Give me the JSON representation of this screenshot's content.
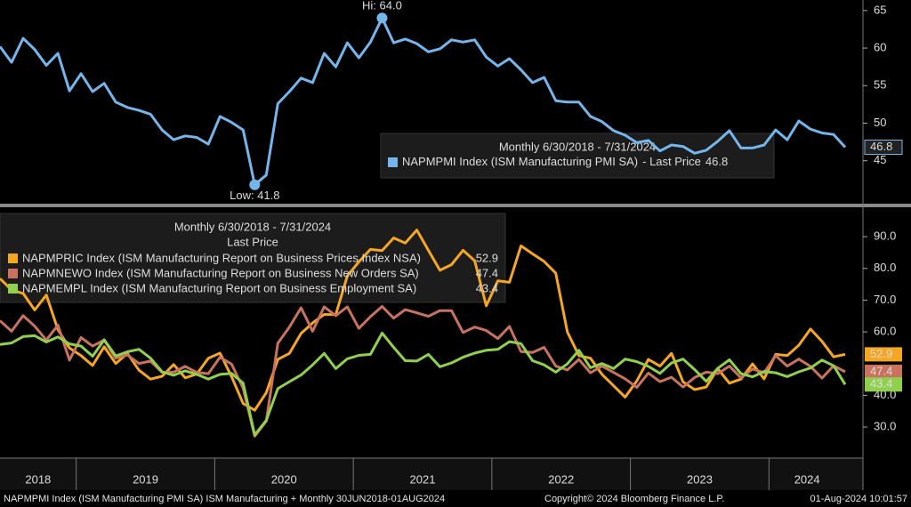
{
  "chart_data": [
    {
      "type": "line",
      "xlim": [
        2018.45,
        2024.55
      ],
      "ylim": [
        39.4,
        66.4
      ],
      "yticks": [
        45,
        50,
        55,
        60,
        65
      ],
      "grid": false,
      "legend_title": "Monthly 6/30/2018 - 7/31/2024",
      "legend_suffix": "- Last Price",
      "annotations": [
        "Hi: 64.0",
        "Low: 41.8"
      ],
      "series": [
        {
          "name": "NAPMPMI Index (ISM Manufacturing PMI SA)",
          "color": "#74b6ec",
          "values": [
            60.2,
            58.1,
            61.3,
            59.8,
            57.7,
            59.3,
            54.3,
            56.6,
            54.2,
            55.3,
            52.8,
            52.1,
            51.7,
            51.2,
            49.1,
            47.8,
            48.3,
            48.1,
            47.2,
            50.9,
            50.1,
            49.1,
            41.8,
            43.1,
            52.6,
            54.2,
            56.0,
            55.4,
            59.3,
            57.5,
            60.7,
            58.7,
            60.8,
            64.0,
            60.7,
            61.2,
            60.6,
            59.5,
            59.9,
            61.1,
            60.8,
            61.1,
            58.8,
            57.6,
            58.6,
            57.1,
            55.4,
            56.1,
            53.0,
            52.8,
            52.8,
            50.9,
            50.2,
            49.0,
            48.4,
            47.4,
            47.7,
            46.3,
            47.1,
            46.9,
            46.0,
            46.4,
            47.6,
            49.0,
            46.7,
            46.7,
            47.1,
            49.1,
            47.8,
            50.3,
            49.2,
            48.7,
            48.5,
            46.8
          ]
        }
      ]
    },
    {
      "type": "line",
      "xlim": [
        2018.45,
        2024.55
      ],
      "xticks": [
        2018,
        2019,
        2020,
        2021,
        2022,
        2023,
        2024
      ],
      "ylim": [
        20.2,
        99
      ],
      "yticks": [
        {
          "value": 30,
          "label": "30.0"
        },
        {
          "value": 40,
          "label": "40.0"
        },
        {
          "value": 60,
          "label": "60.0"
        },
        {
          "value": 70,
          "label": "70.0"
        },
        {
          "value": 80,
          "label": "80.0"
        },
        {
          "value": 90,
          "label": "90.0"
        }
      ],
      "grid": false,
      "legend_title": "Monthly 6/30/2018 - 7/31/2024",
      "legend_subtitle": "Last Price",
      "series": [
        {
          "name": "NAPMPRIC Index (ISM Manufacturing Report on Business Prices Index NSA)",
          "color": "#f5a623",
          "values": [
            76.8,
            73.2,
            72.1,
            66.9,
            71.6,
            60.7,
            54.9,
            52.5,
            49.4,
            55.3,
            50.0,
            53.2,
            47.9,
            45.1,
            46.0,
            49.7,
            45.5,
            46.7,
            51.7,
            53.3,
            45.9,
            37.4,
            35.3,
            40.8,
            51.3,
            53.2,
            59.5,
            62.8,
            65.5,
            65.4,
            77.6,
            82.1,
            86.0,
            85.6,
            89.6,
            88.0,
            92.1,
            85.7,
            79.4,
            81.2,
            85.7,
            82.4,
            68.2,
            76.1,
            75.6,
            87.1,
            84.6,
            82.2,
            78.5,
            60.0,
            52.5,
            51.7,
            46.6,
            43.0,
            39.4,
            44.5,
            51.3,
            49.2,
            53.2,
            44.2,
            41.8,
            42.6,
            48.4,
            43.8,
            45.1,
            49.9,
            45.2,
            52.9,
            52.5,
            55.8,
            60.9,
            57.0,
            52.1,
            52.9
          ]
        },
        {
          "name": "NAPMNEWO Index (ISM Manufacturing Report on Business New Orders SA)",
          "color": "#c9735f",
          "values": [
            63.5,
            60.2,
            65.1,
            61.8,
            57.4,
            62.1,
            51.1,
            58.2,
            55.5,
            57.4,
            51.7,
            52.7,
            50.0,
            50.8,
            47.2,
            47.3,
            49.1,
            47.2,
            46.8,
            52.0,
            49.8,
            42.2,
            27.1,
            31.8,
            56.4,
            61.5,
            67.6,
            60.2,
            67.9,
            65.1,
            67.9,
            61.1,
            64.8,
            68.0,
            64.3,
            67.0,
            66.0,
            64.9,
            66.7,
            66.7,
            59.8,
            61.5,
            60.4,
            57.9,
            61.7,
            53.8,
            53.5,
            55.1,
            49.2,
            48.0,
            51.3,
            47.1,
            49.2,
            47.2,
            45.2,
            42.5,
            47.0,
            44.3,
            45.7,
            42.6,
            45.6,
            47.3,
            46.8,
            49.2,
            45.5,
            48.3,
            47.1,
            52.5,
            49.2,
            51.4,
            49.1,
            45.4,
            49.3,
            47.4
          ]
        },
        {
          "name": "NAPMEMPL Index (ISM Manufacturing Report on Business Employment SA)",
          "color": "#8fd14f",
          "values": [
            56.0,
            56.5,
            58.5,
            58.8,
            56.8,
            58.4,
            56.2,
            55.5,
            52.3,
            57.5,
            52.4,
            53.7,
            54.5,
            51.7,
            47.4,
            46.3,
            47.7,
            46.6,
            45.1,
            46.6,
            46.9,
            43.8,
            27.5,
            32.1,
            42.1,
            44.3,
            46.4,
            49.6,
            53.2,
            48.4,
            51.5,
            52.6,
            52.9,
            59.6,
            55.1,
            50.9,
            50.8,
            52.9,
            49.0,
            50.2,
            52.0,
            53.3,
            54.2,
            54.5,
            56.9,
            56.3,
            50.9,
            49.6,
            47.3,
            49.9,
            54.2,
            48.7,
            50.0,
            48.4,
            51.4,
            50.6,
            49.1,
            46.9,
            50.2,
            51.4,
            48.1,
            44.4,
            48.5,
            51.2,
            46.8,
            45.8,
            47.5,
            47.1,
            45.9,
            47.4,
            48.6,
            51.1,
            49.3,
            43.4
          ]
        }
      ]
    }
  ],
  "footer": {
    "left": "NAPMPMI Index (ISM Manufacturing PMI SA) ISM Manufacturing + Monthly 30JUN2018-01AUG2024",
    "center": "Copyright© 2024 Bloomberg Finance L.P.",
    "right": "01-Aug-2024 10:01:57"
  }
}
